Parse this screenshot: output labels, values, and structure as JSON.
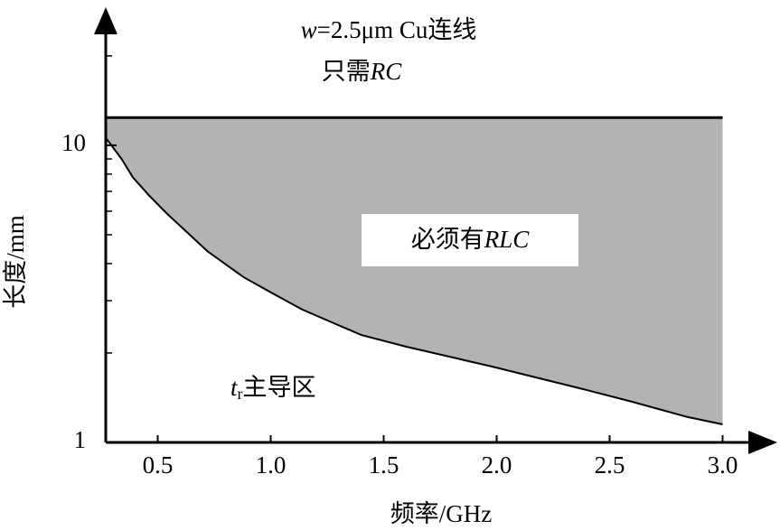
{
  "chart_data": {
    "type": "area",
    "annotations": [
      {
        "parts": [
          "w",
          "=2.5μm Cu连线"
        ]
      },
      {
        "parts": [
          "只需",
          "RC"
        ]
      },
      {
        "parts": [
          "必须有",
          "RLC"
        ]
      },
      {
        "parts": [
          "t",
          "r",
          "主导区"
        ]
      }
    ],
    "xlabel": "频率/GHz",
    "ylabel": "长度/mm",
    "x": [
      0.27,
      0.34,
      0.39,
      0.46,
      0.54,
      0.72,
      0.88,
      1.0,
      1.14,
      1.4,
      1.6,
      1.98,
      2.4,
      2.6,
      2.84,
      3.0
    ],
    "series": [
      {
        "values": [
          10.6,
          9.0,
          7.8,
          6.8,
          5.9,
          4.4,
          3.6,
          3.2,
          2.8,
          2.3,
          2.1,
          1.8,
          1.5,
          1.37,
          1.22,
          1.15
        ],
        "color": "#b3b3b3"
      }
    ],
    "upper": 12.4,
    "xlim": [
      0.27,
      3.23
    ],
    "ylim": [
      1,
      25
    ],
    "ylog": true,
    "xticks": [
      0.5,
      {
        "value": 1,
        "label": "1.0"
      },
      1.5,
      {
        "value": 2,
        "label": "2.0"
      },
      2.5,
      {
        "value": 3,
        "label": "3.0"
      }
    ],
    "yticks": [
      1,
      10
    ],
    "yminorticks": [
      2,
      3,
      4,
      5,
      6,
      7,
      8,
      9,
      20
    ]
  }
}
